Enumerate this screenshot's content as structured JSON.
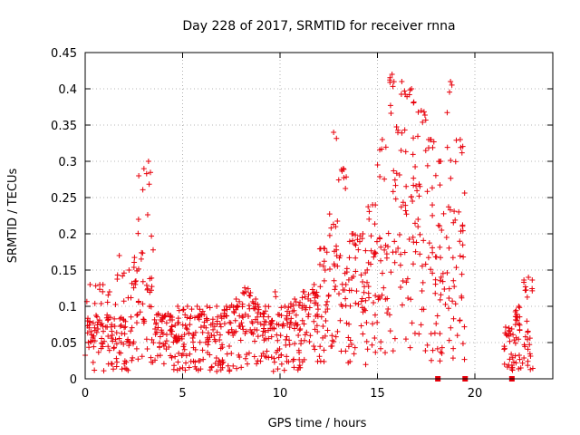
{
  "chart_data": {
    "type": "scatter",
    "title": "Day 228 of 2017, SRMTID for receiver rnna",
    "xlabel": "GPS time / hours",
    "ylabel": "SRMTID / TECUs",
    "xlim": [
      0,
      24
    ],
    "ylim": [
      0,
      0.45
    ],
    "grid": true,
    "x_ticks": [
      0,
      5,
      10,
      15,
      20
    ],
    "x_tick_labels": [
      "0",
      "5",
      "10",
      "15",
      "20"
    ],
    "y_ticks": [
      0,
      0.05,
      0.1,
      0.15,
      0.2,
      0.25,
      0.3,
      0.35,
      0.4,
      0.45
    ],
    "y_tick_labels": [
      "0",
      "0.05",
      "0.1",
      "0.15",
      "0.2",
      "0.25",
      "0.3",
      "0.35",
      "0.4",
      "0.45"
    ],
    "marker": "plus",
    "color": "#e8000b",
    "envelope_note": "dense cloud of points; values summarised as a typical level and a peak level per half hour, plus zero-value square markers",
    "series": [
      {
        "name": "SRMTID",
        "x": [
          0.25,
          0.75,
          1.25,
          1.75,
          2.25,
          2.75,
          3.25,
          3.75,
          4.25,
          4.75,
          5.25,
          5.75,
          6.25,
          6.75,
          7.25,
          7.75,
          8.25,
          8.75,
          9.25,
          9.75,
          10.25,
          10.75,
          11.25,
          11.75,
          12.25,
          12.75,
          13.25,
          13.75,
          14.25,
          14.75,
          15.25,
          15.75,
          16.25,
          16.75,
          17.25,
          17.75,
          18.25,
          18.75,
          19.25,
          21.75,
          22.25,
          22.75
        ],
        "typical": [
          0.05,
          0.05,
          0.05,
          0.05,
          0.04,
          0.1,
          0.11,
          0.05,
          0.05,
          0.05,
          0.05,
          0.05,
          0.05,
          0.05,
          0.05,
          0.06,
          0.07,
          0.06,
          0.05,
          0.05,
          0.05,
          0.06,
          0.07,
          0.07,
          0.1,
          0.13,
          0.1,
          0.08,
          0.09,
          0.1,
          0.11,
          0.16,
          0.22,
          0.19,
          0.15,
          0.12,
          0.12,
          0.13,
          0.12,
          0.04,
          0.05,
          0.04
        ],
        "peak": [
          0.13,
          0.13,
          0.12,
          0.17,
          0.15,
          0.28,
          0.3,
          0.09,
          0.09,
          0.1,
          0.1,
          0.1,
          0.1,
          0.1,
          0.1,
          0.11,
          0.12,
          0.11,
          0.1,
          0.12,
          0.1,
          0.11,
          0.12,
          0.13,
          0.18,
          0.34,
          0.29,
          0.2,
          0.2,
          0.24,
          0.33,
          0.42,
          0.41,
          0.4,
          0.37,
          0.33,
          0.3,
          0.41,
          0.33,
          0.07,
          0.1,
          0.14
        ]
      }
    ],
    "zero_markers": [
      18.1,
      19.5,
      21.9
    ]
  }
}
